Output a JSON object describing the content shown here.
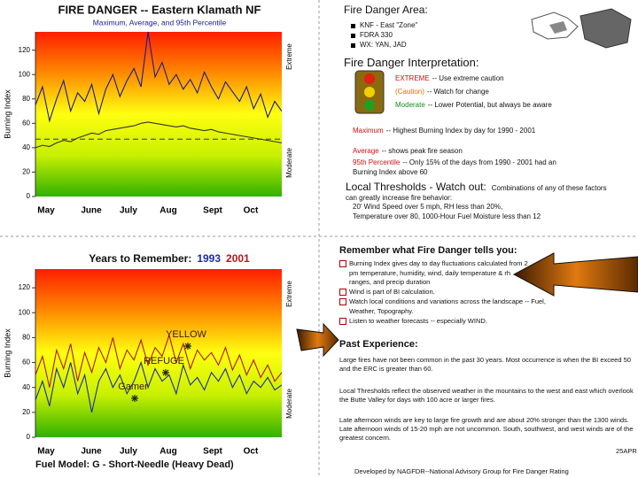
{
  "chart_data": [
    {
      "type": "line",
      "title": "FIRE DANGER -- Eastern Klamath NF",
      "subtitle": "Maximum, Average, and 95th Percentile",
      "y_label": "Burning Index",
      "zone_labels": [
        "Extreme",
        "Moderate"
      ],
      "xtick_labels": [
        "May",
        "June",
        "July",
        "Aug",
        "Sept",
        "Oct"
      ],
      "series": [
        {
          "name": "Maximum",
          "color": "#1c1c8c",
          "values": [
            75,
            90,
            62,
            80,
            95,
            70,
            85,
            78,
            92,
            68,
            88,
            100,
            82,
            95,
            105,
            90,
            135,
            98,
            110,
            92,
            100,
            88,
            96,
            85,
            102,
            90,
            80,
            94,
            86,
            78,
            90,
            72,
            84,
            65,
            78,
            70
          ]
        },
        {
          "name": "Average",
          "color": "#333333",
          "values": [
            40,
            42,
            41,
            44,
            46,
            45,
            48,
            50,
            52,
            51,
            54,
            55,
            56,
            57,
            58,
            60,
            61,
            60,
            59,
            58,
            57,
            58,
            56,
            55,
            54,
            55,
            53,
            52,
            51,
            50,
            49,
            48,
            47,
            46,
            45,
            44
          ]
        }
      ],
      "reference_line": {
        "value": 47,
        "color": "#555555"
      },
      "ylim": [
        0,
        135
      ],
      "yticks": [
        0,
        20,
        40,
        60,
        80,
        100,
        120
      ]
    },
    {
      "type": "line",
      "title": "Years to Remember:",
      "y_label": "Burning Index",
      "zone_labels": [
        "Extreme",
        "Moderate"
      ],
      "xtick_labels": [
        "May",
        "June",
        "July",
        "Aug",
        "Sept",
        "Oct"
      ],
      "series": [
        {
          "name": "1993",
          "color": "#1c2ca8",
          "values": [
            30,
            45,
            25,
            55,
            40,
            60,
            35,
            50,
            20,
            45,
            55,
            40,
            50,
            35,
            45,
            60,
            40,
            55,
            45,
            50,
            35,
            58,
            42,
            48,
            38,
            52,
            45,
            55,
            40,
            50,
            35,
            45,
            40,
            48,
            38,
            42
          ]
        },
        {
          "name": "2001",
          "color": "#b01818",
          "values": [
            50,
            65,
            40,
            70,
            55,
            75,
            45,
            68,
            52,
            72,
            60,
            80,
            55,
            70,
            62,
            78,
            58,
            72,
            65,
            82,
            60,
            75,
            55,
            70,
            62,
            68,
            58,
            72,
            54,
            66,
            50,
            62,
            48,
            58,
            45,
            52
          ]
        }
      ],
      "annotations": [
        "YELLOW",
        "REFUGE",
        "Gamer"
      ],
      "ylim": [
        0,
        135
      ],
      "yticks": [
        0,
        20,
        40,
        60,
        80,
        100,
        120
      ]
    }
  ],
  "area": {
    "heading": "Fire Danger Area:",
    "items": [
      "KNF - East \"Zone\"",
      "FDRA 330",
      "WX: YAN, JAD"
    ]
  },
  "interpretation": {
    "heading": "Fire Danger Interpretation:",
    "levels": [
      {
        "term": "EXTREME",
        "text": "-- Use extreme caution"
      },
      {
        "term": "(Caution)",
        "text": "-- Watch for change"
      },
      {
        "term": "Moderate",
        "text": "-- Lower Potential, but always be aware"
      }
    ]
  },
  "definitions": [
    {
      "term": "Maximum",
      "text": "-- Highest Burning Index by day for 1990 - 2001"
    },
    {
      "term": "Average",
      "text": "-- shows peak fire season"
    },
    {
      "term": "95th Percentile",
      "text": "-- Only 15% of the days from 1990 - 2001 had an Burning Index above 60"
    }
  ],
  "thresholds": {
    "heading": "Local Thresholds - Watch out:",
    "intro": "Combinations of any of these factors can greatly increase fire behavior:",
    "items": [
      "20' Wind Speed over 5 mph, RH less than 20%,",
      "Temperature over 80, 1000-Hour Fuel Moisture less than 12"
    ]
  },
  "remember": {
    "heading": "Remember what Fire Danger tells you:",
    "items": [
      "Burning Index gives day to day fluctuations calculated from 2 pm temperature, humidity, wind, daily temperature & rh ranges, and precip duration",
      "Wind is part of BI calculation.",
      "Watch local conditions and variations across the landscape -- Fuel, Weather, Topography.",
      "Listen to weather forecasts -- especially WIND."
    ]
  },
  "past": {
    "heading": "Past Experience:",
    "paragraphs": [
      "Large fires have not been common in the past 30 years. Most occurrence is when the BI exceed 50 and the ERC is greater than 60.",
      "Local Thresholds reflect the observed weather in the mountains to the west and east which overlook the Butte Valley for days with 100 acre or larger fires.",
      "Late afternoon winds are key to large fire growth and are about 20% stronger than the 1300 winds. Late afternoon winds of 15-20 mph are not uncommon. South, southwest, and west winds are of the greatest concern."
    ]
  },
  "footer": {
    "fuel_model": "Fuel Model: G - Short-Needle (Heavy Dead)",
    "developed_by": "Developed by NAGFDR--National Advisory Group for Fire Danger Rating",
    "date": "25APR"
  }
}
